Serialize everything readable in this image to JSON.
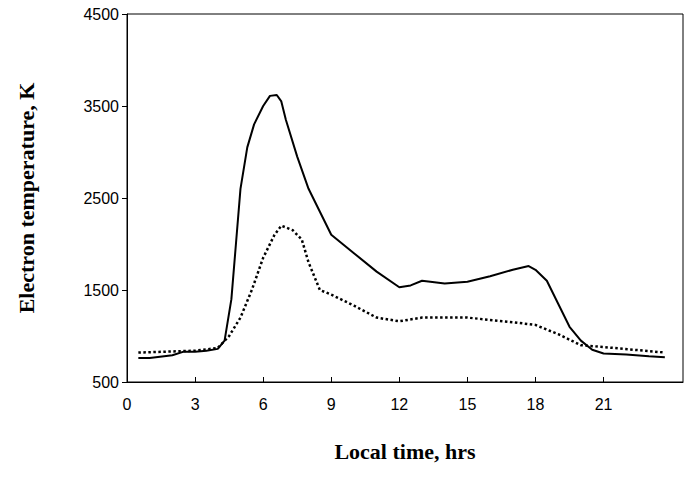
{
  "chart_data": {
    "type": "line",
    "x_label": "Local time, hrs",
    "y_label": "Electron temperature, K",
    "xlim": [
      0,
      24.5
    ],
    "xticks": [
      0,
      3,
      6,
      9,
      12,
      15,
      18,
      21
    ],
    "ylim": [
      500,
      4500
    ],
    "yticks": [
      500,
      1500,
      2500,
      3500,
      4500
    ],
    "grid": false,
    "series": [
      {
        "color": "#000000",
        "line_style": "solid",
        "marker": "none",
        "x": [
          0.5,
          1,
          2,
          2.5,
          3,
          3.5,
          4,
          4.3,
          4.6,
          4.8,
          5,
          5.3,
          5.6,
          6,
          6.3,
          6.6,
          6.8,
          7,
          7.5,
          8,
          8.5,
          9,
          9.5,
          10,
          11,
          12,
          12.5,
          13,
          14,
          15,
          16,
          17,
          17.7,
          18,
          18.5,
          19,
          19.5,
          20,
          20.5,
          21,
          22,
          23,
          23.7
        ],
        "values": [
          760,
          760,
          790,
          830,
          830,
          840,
          860,
          950,
          1400,
          2000,
          2600,
          3050,
          3300,
          3500,
          3610,
          3620,
          3550,
          3350,
          2950,
          2600,
          2350,
          2100,
          2000,
          1900,
          1700,
          1530,
          1550,
          1600,
          1570,
          1590,
          1650,
          1720,
          1760,
          1720,
          1600,
          1350,
          1100,
          950,
          850,
          810,
          800,
          780,
          770
        ]
      },
      {
        "color": "#000000",
        "line_style": "dotted",
        "marker": "none",
        "x": [
          0.5,
          3,
          4,
          4.5,
          5,
          5.5,
          6,
          6.5,
          6.8,
          7.3,
          7.7,
          8,
          8.5,
          9,
          10,
          11,
          12,
          13,
          15,
          17,
          18,
          19,
          20,
          21,
          23.7
        ],
        "values": [
          820,
          840,
          870,
          1000,
          1200,
          1500,
          1850,
          2100,
          2200,
          2150,
          2050,
          1800,
          1500,
          1450,
          1330,
          1200,
          1160,
          1200,
          1200,
          1150,
          1120,
          1020,
          900,
          880,
          820
        ]
      }
    ]
  }
}
